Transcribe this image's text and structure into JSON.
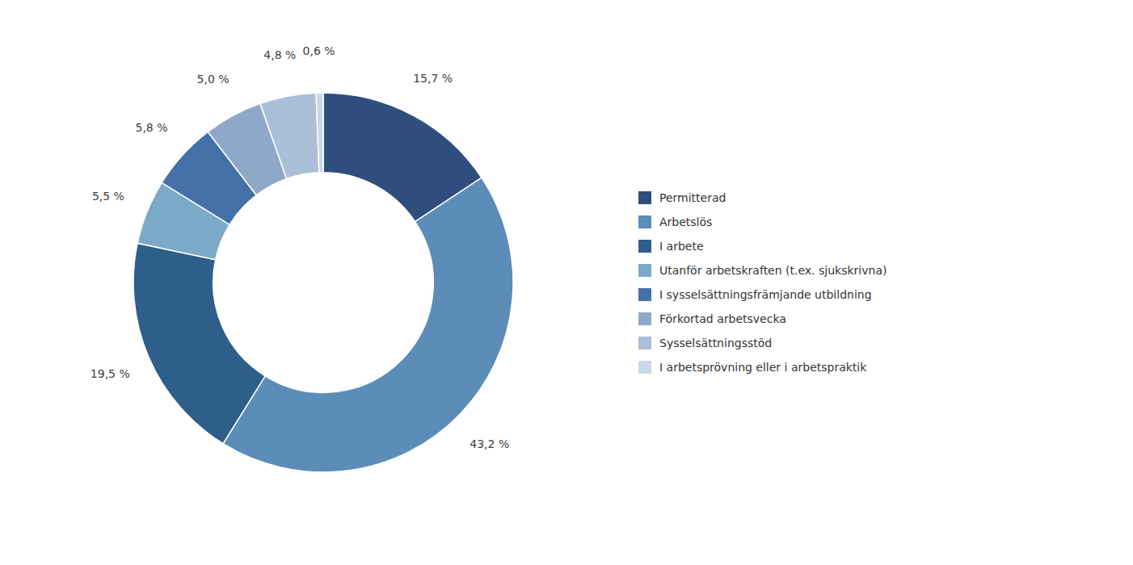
{
  "chart_data": {
    "type": "pie",
    "categories": [
      "Permitterad",
      "Arbetslös",
      "I arbete",
      "Utanför arbetskraften (t.ex. sjukskrivna)",
      "I sysselsättningsfrämjande utbildning",
      "Förkortad arbetsvecka",
      "Sysselsättningsstöd",
      "I arbetsprövning eller i arbetspraktik"
    ],
    "values": [
      15.7,
      43.2,
      19.5,
      5.5,
      5.8,
      5.0,
      4.8,
      0.6
    ],
    "value_labels": [
      "15,7 %",
      "43,2 %",
      "19,5 %",
      "5,5 %",
      "5,8 %",
      "5,0 %",
      "4,8 %",
      "0,6 %"
    ],
    "colors": [
      "#2F4E7E",
      "#5B8DB8",
      "#2E5F8A",
      "#7BAAC8",
      "#4472A8",
      "#8FA8C8",
      "#AABFD8",
      "#C8D8E8"
    ],
    "data_labels": true,
    "legend": "right"
  }
}
